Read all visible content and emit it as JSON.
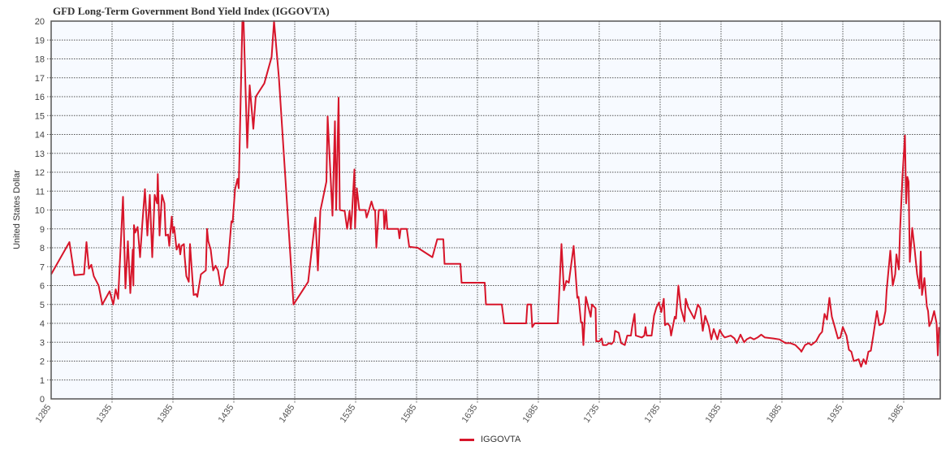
{
  "chart_data": {
    "type": "line",
    "title": "GFD Long-Term Government Bond Yield Index (IGGOVTA)",
    "xlabel": "",
    "ylabel": "United States Dollar",
    "xlim": [
      1285,
      2015
    ],
    "ylim": [
      0,
      20
    ],
    "x_ticks": [
      1285,
      1335,
      1385,
      1435,
      1485,
      1535,
      1585,
      1635,
      1685,
      1735,
      1785,
      1835,
      1885,
      1935,
      1985
    ],
    "y_ticks": [
      0,
      1,
      2,
      3,
      4,
      5,
      6,
      7,
      8,
      9,
      10,
      11,
      12,
      13,
      14,
      15,
      16,
      17,
      18,
      19,
      20
    ],
    "grid": true,
    "legend_position": "bottom-center",
    "line_color": "#d7152a",
    "plot_background": "#f7faff",
    "series": [
      {
        "name": "IGGOVTA",
        "x": [
          1285,
          1300,
          1304,
          1312,
          1314,
          1316,
          1318,
          1320,
          1324,
          1327,
          1333,
          1336,
          1338,
          1340,
          1344,
          1346,
          1348,
          1350,
          1352,
          1352.5,
          1353,
          1354,
          1356,
          1358,
          1360,
          1362,
          1364,
          1366,
          1368,
          1370,
          1372,
          1372.5,
          1374,
          1376,
          1378,
          1379,
          1381,
          1382,
          1384,
          1385,
          1386,
          1388,
          1390,
          1391,
          1392,
          1394,
          1394.5,
          1396,
          1398,
          1399,
          1401,
          1402,
          1404,
          1405,
          1408,
          1412,
          1413,
          1414,
          1416,
          1418,
          1420,
          1422,
          1424,
          1426,
          1428,
          1430,
          1433,
          1434,
          1436,
          1438,
          1439,
          1442,
          1443,
          1446,
          1448,
          1451,
          1453,
          1460,
          1466,
          1468,
          1472,
          1484,
          1496,
          1502,
          1504,
          1506,
          1511,
          1512,
          1516,
          1518,
          1519,
          1521,
          1522,
          1526,
          1528,
          1530,
          1531,
          1532,
          1534,
          1534.5,
          1536,
          1538,
          1543,
          1544,
          1546,
          1548,
          1550,
          1551,
          1552,
          1554,
          1558,
          1558.5,
          1560,
          1561,
          1570,
          1571,
          1572,
          1577,
          1579,
          1586,
          1598,
          1602,
          1607,
          1608,
          1621,
          1622,
          1641,
          1642,
          1655,
          1657,
          1675,
          1676,
          1679,
          1680,
          1682,
          1701,
          1704,
          1706,
          1708,
          1710,
          1714,
          1717,
          1718,
          1720,
          1721,
          1722,
          1724,
          1728,
          1729,
          1732,
          1732.5,
          1735,
          1737,
          1738,
          1741,
          1743,
          1745,
          1747,
          1748,
          1751,
          1753,
          1756,
          1758,
          1761,
          1762,
          1764,
          1765,
          1770,
          1772,
          1773,
          1774,
          1778,
          1780,
          1782,
          1784,
          1786,
          1788,
          1789,
          1791,
          1793,
          1794,
          1797,
          1798,
          1800,
          1802,
          1805,
          1806,
          1808,
          1813,
          1816,
          1818,
          1820,
          1822,
          1825,
          1827,
          1829,
          1832,
          1834,
          1836,
          1838,
          1843,
          1846,
          1848,
          1851,
          1854,
          1856,
          1859,
          1862,
          1865,
          1868,
          1871,
          1878,
          1883,
          1888,
          1892,
          1896,
          1900,
          1901,
          1904,
          1907,
          1909,
          1913,
          1916,
          1918,
          1920,
          1922,
          1924,
          1926,
          1928,
          1931,
          1933,
          1935,
          1938,
          1940,
          1942,
          1944,
          1946,
          1948,
          1950,
          1952,
          1954,
          1956,
          1958,
          1960,
          1963,
          1965,
          1968,
          1970,
          1971,
          1974,
          1976,
          1978,
          1979,
          1981,
          1982,
          1984,
          1986,
          1987,
          1988,
          1989,
          1990,
          1992,
          1994,
          1996,
          1998,
          1999,
          2000,
          2002,
          2004,
          2005,
          2006,
          2008,
          2010,
          2012,
          2013,
          2014
        ],
        "values": [
          6.6,
          8.3,
          6.55,
          6.6,
          8.3,
          6.9,
          7.1,
          6.5,
          6.0,
          5.0,
          5.7,
          5.0,
          5.8,
          5.3,
          10.7,
          5.85,
          8.35,
          5.6,
          7.9,
          6.0,
          9.2,
          8.8,
          9.1,
          7.5,
          9.4,
          11.1,
          8.65,
          10.8,
          7.5,
          10.8,
          10.35,
          11.9,
          8.65,
          10.8,
          10.35,
          8.65,
          8.7,
          8.1,
          9.65,
          8.8,
          9.1,
          7.9,
          8.2,
          7.65,
          8.1,
          8.2,
          7.6,
          6.5,
          6.2,
          8.2,
          6.35,
          5.5,
          5.55,
          5.4,
          6.6,
          6.8,
          9.0,
          8.35,
          7.9,
          6.8,
          7.05,
          6.8,
          6.0,
          6.05,
          6.85,
          7.0,
          9.4,
          9.35,
          11.1,
          11.65,
          11.15,
          20.0,
          20.0,
          13.3,
          16.6,
          14.3,
          16.0,
          16.7,
          18.1,
          20.0,
          17.0,
          5.0,
          6.2,
          9.6,
          6.8,
          9.95,
          11.5,
          14.95,
          9.7,
          14.7,
          10.0,
          15.95,
          10.0,
          9.95,
          9.0,
          9.95,
          9.0,
          9.8,
          12.15,
          9.05,
          11.15,
          10.0,
          10.0,
          9.6,
          10.0,
          10.45,
          10.0,
          10.0,
          8.0,
          10.0,
          10.0,
          9.0,
          10.0,
          9.0,
          9.0,
          8.5,
          9.0,
          9.0,
          8.05,
          8.0,
          7.5,
          8.45,
          8.45,
          7.15,
          7.15,
          6.15,
          6.15,
          5.0,
          5.0,
          4.0,
          4.0,
          5.0,
          5.0,
          3.8,
          4.0,
          4.0,
          8.2,
          5.75,
          6.25,
          6.15,
          8.1,
          5.35,
          5.4,
          4.05,
          4.05,
          2.85,
          5.4,
          4.35,
          5.0,
          4.8,
          3.05,
          3.05,
          3.2,
          2.85,
          2.85,
          2.95,
          2.9,
          3.05,
          3.6,
          3.5,
          2.95,
          2.85,
          3.35,
          3.35,
          3.8,
          4.5,
          3.35,
          3.25,
          3.35,
          3.8,
          3.35,
          3.35,
          4.4,
          4.85,
          5.1,
          4.6,
          5.3,
          3.9,
          4.0,
          3.85,
          3.35,
          4.35,
          4.25,
          6.0,
          4.8,
          4.1,
          5.3,
          4.85,
          4.25,
          5.0,
          4.8,
          3.6,
          4.4,
          3.85,
          3.15,
          3.7,
          3.15,
          3.65,
          3.4,
          3.25,
          3.35,
          3.2,
          2.95,
          3.4,
          3.0,
          3.15,
          3.25,
          3.15,
          3.25,
          3.4,
          3.25,
          3.2,
          3.15,
          2.95,
          2.95,
          2.85,
          2.6,
          2.5,
          2.85,
          2.95,
          2.85,
          3.05,
          3.4,
          3.55,
          4.5,
          4.2,
          5.35,
          4.35,
          3.9,
          3.2,
          3.25,
          3.8,
          3.35,
          2.6,
          2.5,
          2.0,
          2.05,
          2.1,
          1.7,
          2.1,
          1.85,
          2.5,
          2.55,
          3.35,
          4.65,
          3.9,
          4.0,
          4.65,
          5.75,
          7.85,
          6.0,
          6.6,
          7.65,
          6.85,
          8.95,
          11.8,
          13.95,
          10.35,
          11.75,
          11.5,
          7.25,
          9.05,
          7.9,
          6.6,
          5.85,
          7.8,
          5.5,
          6.4,
          4.9,
          4.65,
          3.85,
          4.15,
          4.65,
          4.0,
          2.3,
          3.8
        ]
      }
    ]
  },
  "legend": {
    "items": [
      {
        "label": "IGGOVTA",
        "color": "#d7152a"
      }
    ]
  }
}
